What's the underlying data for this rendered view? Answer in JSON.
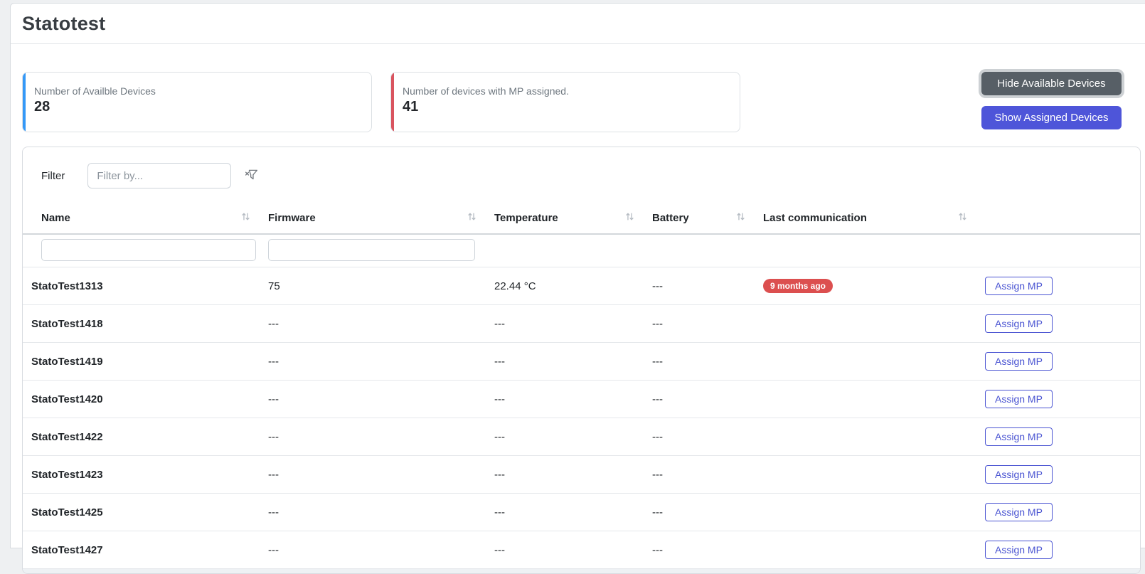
{
  "page": {
    "title": "Statotest"
  },
  "stats": [
    {
      "label": "Number of Availble Devices",
      "value": "28",
      "accent": "#3498f7"
    },
    {
      "label": "Number of devices with MP assigned.",
      "value": "41",
      "accent": "#d9545f"
    }
  ],
  "actions": {
    "hide_button": "Hide Available Devices",
    "show_button": "Show Assigned Devices"
  },
  "filter": {
    "label": "Filter",
    "placeholder": "Filter by...",
    "icon": "filter-clear-icon"
  },
  "table": {
    "columns": [
      {
        "label": "Name",
        "sortable": true,
        "filterable": true
      },
      {
        "label": "Firmware",
        "sortable": true,
        "filterable": true
      },
      {
        "label": "Temperature",
        "sortable": true,
        "filterable": false
      },
      {
        "label": "Battery",
        "sortable": true,
        "filterable": false
      },
      {
        "label": "Last communication",
        "sortable": true,
        "filterable": false
      },
      {
        "label": "",
        "sortable": false,
        "filterable": false
      }
    ],
    "assign_button_label": "Assign MP",
    "rows": [
      {
        "name": "StatoTest1313",
        "firmware": "75",
        "temperature": "22.44 °C",
        "battery": "---",
        "last_communication": "9 months ago",
        "last_communication_badge": true
      },
      {
        "name": "StatoTest1418",
        "firmware": "---",
        "temperature": "---",
        "battery": "---",
        "last_communication": "",
        "last_communication_badge": false
      },
      {
        "name": "StatoTest1419",
        "firmware": "---",
        "temperature": "---",
        "battery": "---",
        "last_communication": "",
        "last_communication_badge": false
      },
      {
        "name": "StatoTest1420",
        "firmware": "---",
        "temperature": "---",
        "battery": "---",
        "last_communication": "",
        "last_communication_badge": false
      },
      {
        "name": "StatoTest1422",
        "firmware": "---",
        "temperature": "---",
        "battery": "---",
        "last_communication": "",
        "last_communication_badge": false
      },
      {
        "name": "StatoTest1423",
        "firmware": "---",
        "temperature": "---",
        "battery": "---",
        "last_communication": "",
        "last_communication_badge": false
      },
      {
        "name": "StatoTest1425",
        "firmware": "---",
        "temperature": "---",
        "battery": "---",
        "last_communication": "",
        "last_communication_badge": false
      },
      {
        "name": "StatoTest1427",
        "firmware": "---",
        "temperature": "---",
        "battery": "---",
        "last_communication": "",
        "last_communication_badge": false
      }
    ]
  },
  "colors": {
    "primary": "#4e55d9",
    "secondary": "#575f66",
    "danger_badge": "#dc4f4f",
    "accent_blue": "#3498f7",
    "accent_red": "#d9545f"
  }
}
